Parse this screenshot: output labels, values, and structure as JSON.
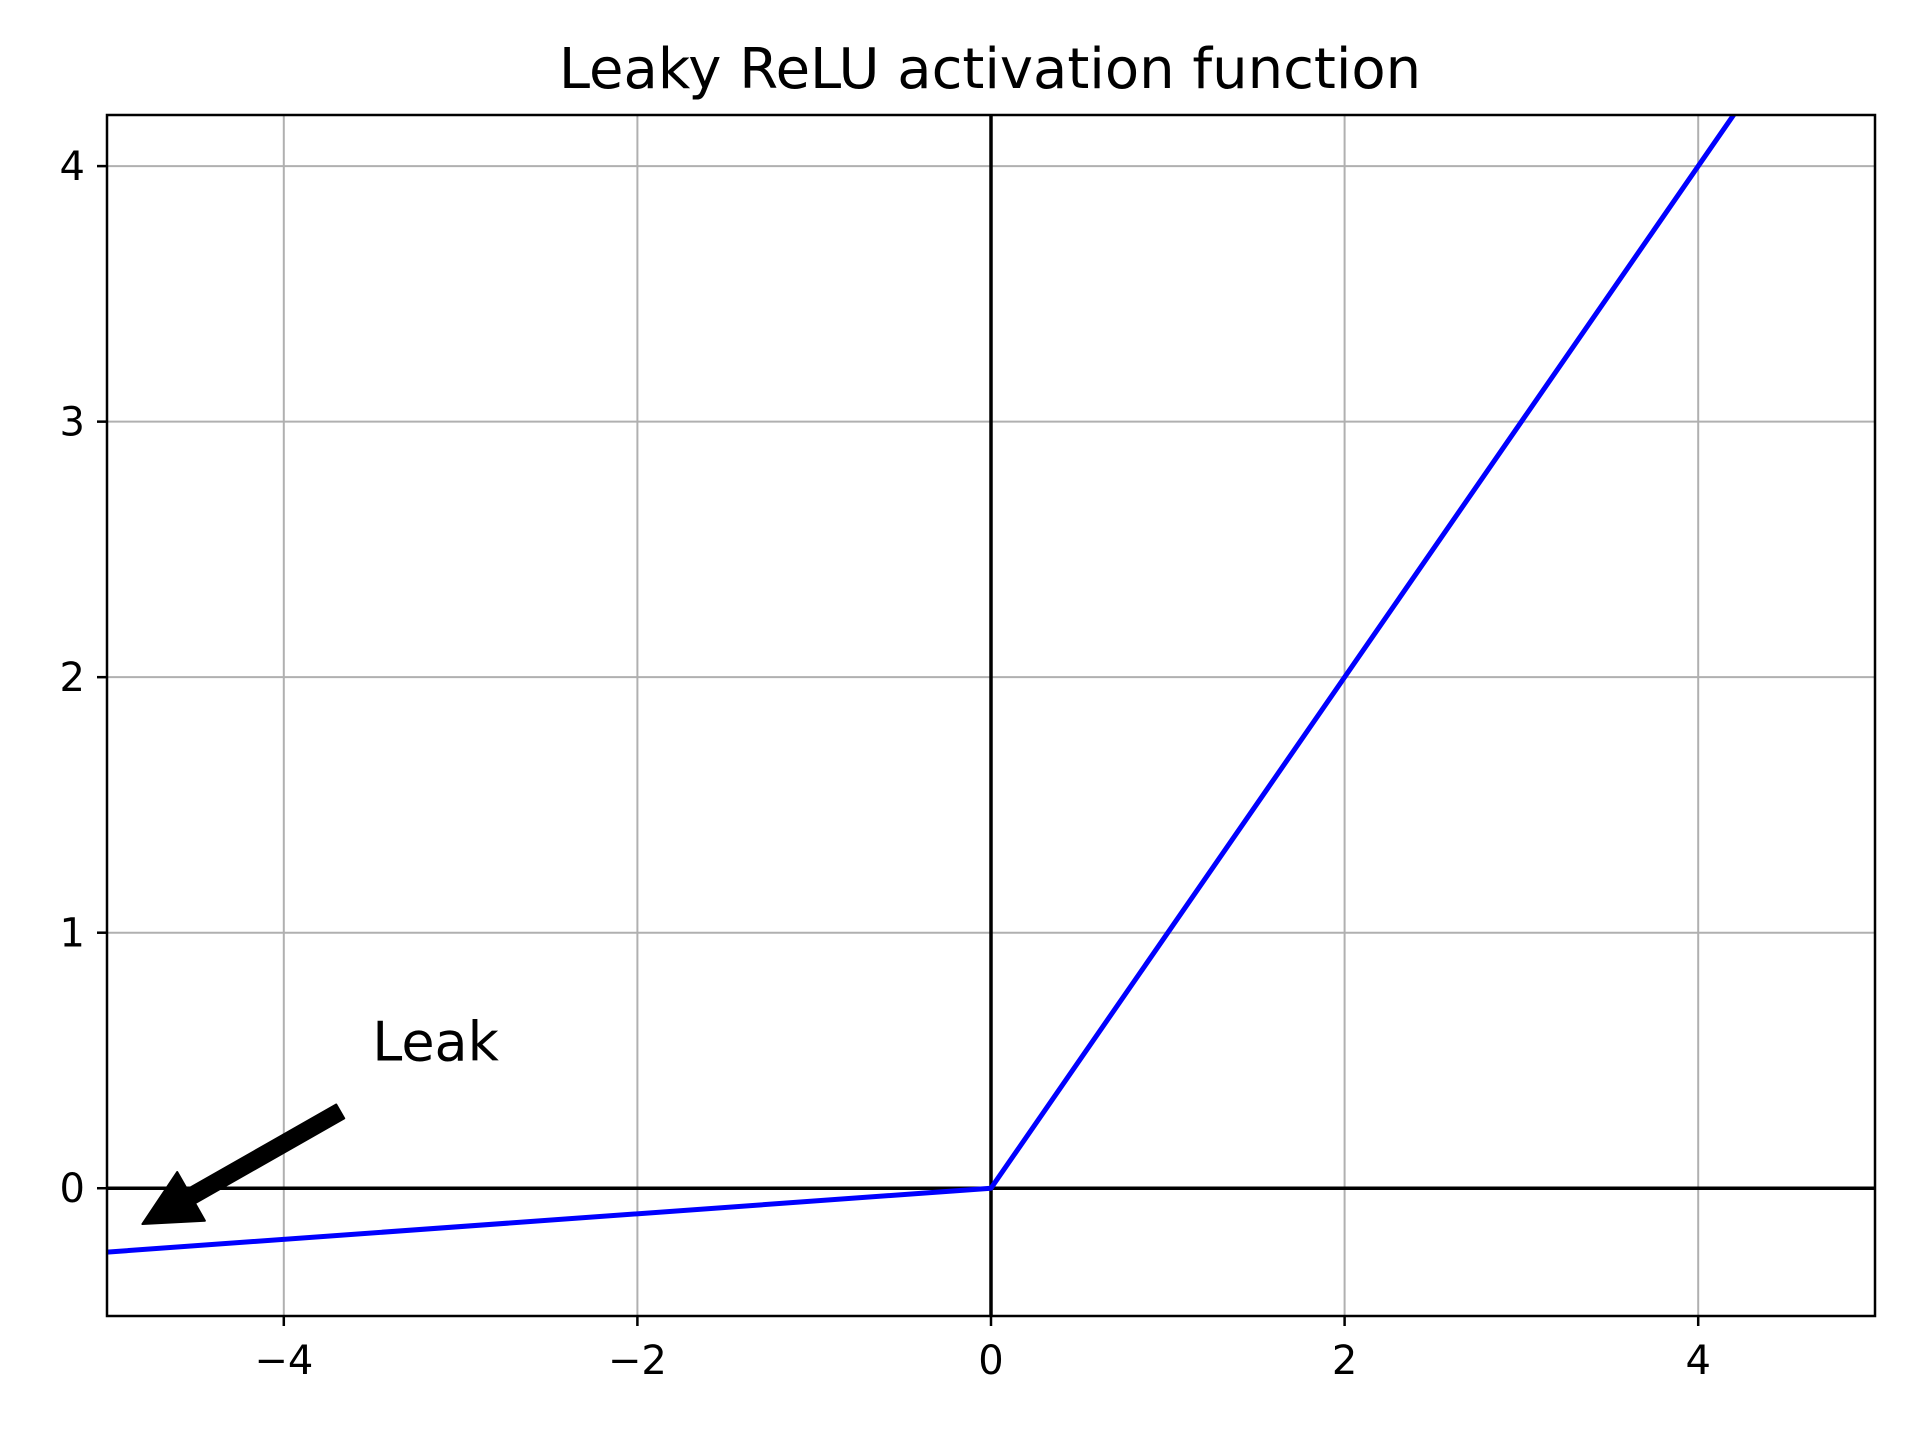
{
  "chart_data": {
    "type": "line",
    "title": "Leaky ReLU activation function",
    "xlabel": "",
    "ylabel": "",
    "xlim": [
      -5,
      5
    ],
    "ylim": [
      -0.5,
      4.2
    ],
    "grid": true,
    "x_ticks": [
      -4,
      -2,
      0,
      2,
      4
    ],
    "x_tick_labels": [
      "−4",
      "−2",
      "0",
      "2",
      "4"
    ],
    "y_ticks": [
      0,
      1,
      2,
      3,
      4
    ],
    "y_tick_labels": [
      "0",
      "1",
      "2",
      "3",
      "4"
    ],
    "series": [
      {
        "color": "#0000ff",
        "x": [
          -5,
          0,
          5
        ],
        "y": [
          -0.25,
          0,
          5
        ]
      }
    ],
    "reference_lines": [
      {
        "orientation": "horizontal",
        "value": 0,
        "color": "#000000"
      },
      {
        "orientation": "vertical",
        "value": 0,
        "color": "#000000"
      }
    ],
    "annotation": {
      "text": "Leak",
      "text_x": -3.5,
      "text_y": 0.5,
      "arrow_x": -4.8,
      "arrow_y": -0.14
    },
    "colors": {
      "grid": "#b0b0b0",
      "axes": "#000000",
      "line": "#0000ff",
      "background": "#ffffff"
    }
  }
}
